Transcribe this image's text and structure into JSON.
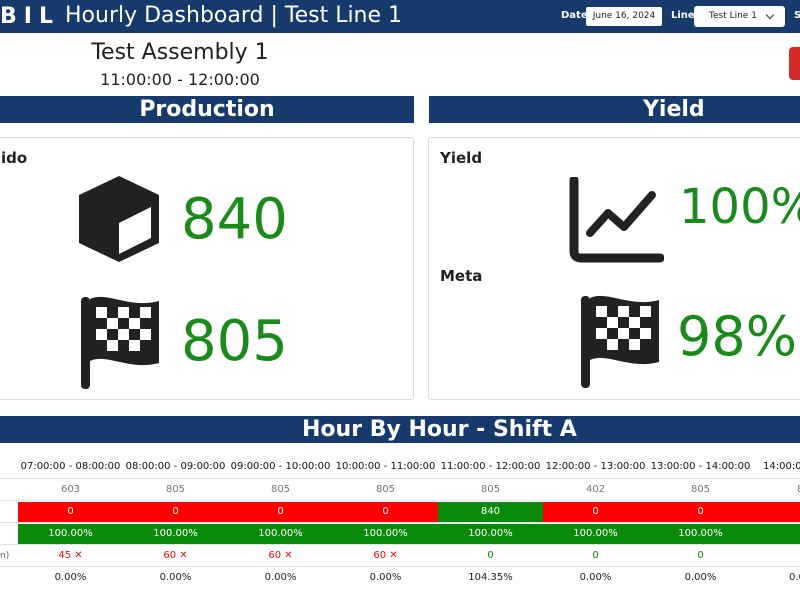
{
  "topbar": {
    "logo": "BIL",
    "title": "Hourly Dashboard | Test Line 1",
    "date_label": "Date",
    "date_value": "June 16, 2024",
    "line_label": "Line",
    "line_value": "Test Line 1",
    "cut_label": "S"
  },
  "header": {
    "assembly": "Test Assembly 1",
    "time_range": "11:00:00 - 12:00:00"
  },
  "production": {
    "title": "Production",
    "label_partial": "ido",
    "produced": "840",
    "target": "805"
  },
  "yield": {
    "title": "Yield",
    "yield_label": "Yield",
    "yield_value": "100%",
    "meta_label": "Meta",
    "meta_value": "98%"
  },
  "hour_by_hour": {
    "title": "Hour By Hour - Shift A",
    "headers": [
      "07:00:00 - 08:00:00",
      "08:00:00 - 09:00:00",
      "09:00:00 - 10:00:00",
      "10:00:00 - 11:00:00",
      "11:00:00 - 12:00:00",
      "12:00:00 - 13:00:00",
      "13:00:00 - 14:00:00",
      "14:00:0"
    ],
    "target_row": [
      "603",
      "805",
      "805",
      "805",
      "805",
      "402",
      "805",
      "8"
    ],
    "produced_row": [
      "0",
      "0",
      "0",
      "0",
      "840",
      "0",
      "0",
      ""
    ],
    "yield_row": [
      "100.00%",
      "100.00%",
      "100.00%",
      "100.00%",
      "100.00%",
      "100.00%",
      "100.00%",
      ""
    ],
    "downtime_label": "n)",
    "downtime_row": [
      "45 ✕",
      "60 ✕",
      "60 ✕",
      "60 ✕",
      "0",
      "0",
      "0",
      ""
    ],
    "efficiency_row": [
      "0.00%",
      "0.00%",
      "0.00%",
      "0.00%",
      "104.35%",
      "0.00%",
      "0.00%",
      "0.0"
    ]
  },
  "colors": {
    "navy": "#163a6b",
    "good_green": "#0a8a0a",
    "bad_red": "#ff0000",
    "value_green": "#1a8a1a"
  },
  "icons": [
    "cube-icon",
    "checkered-flag-icon",
    "line-chart-icon",
    "checkered-flag-icon"
  ]
}
